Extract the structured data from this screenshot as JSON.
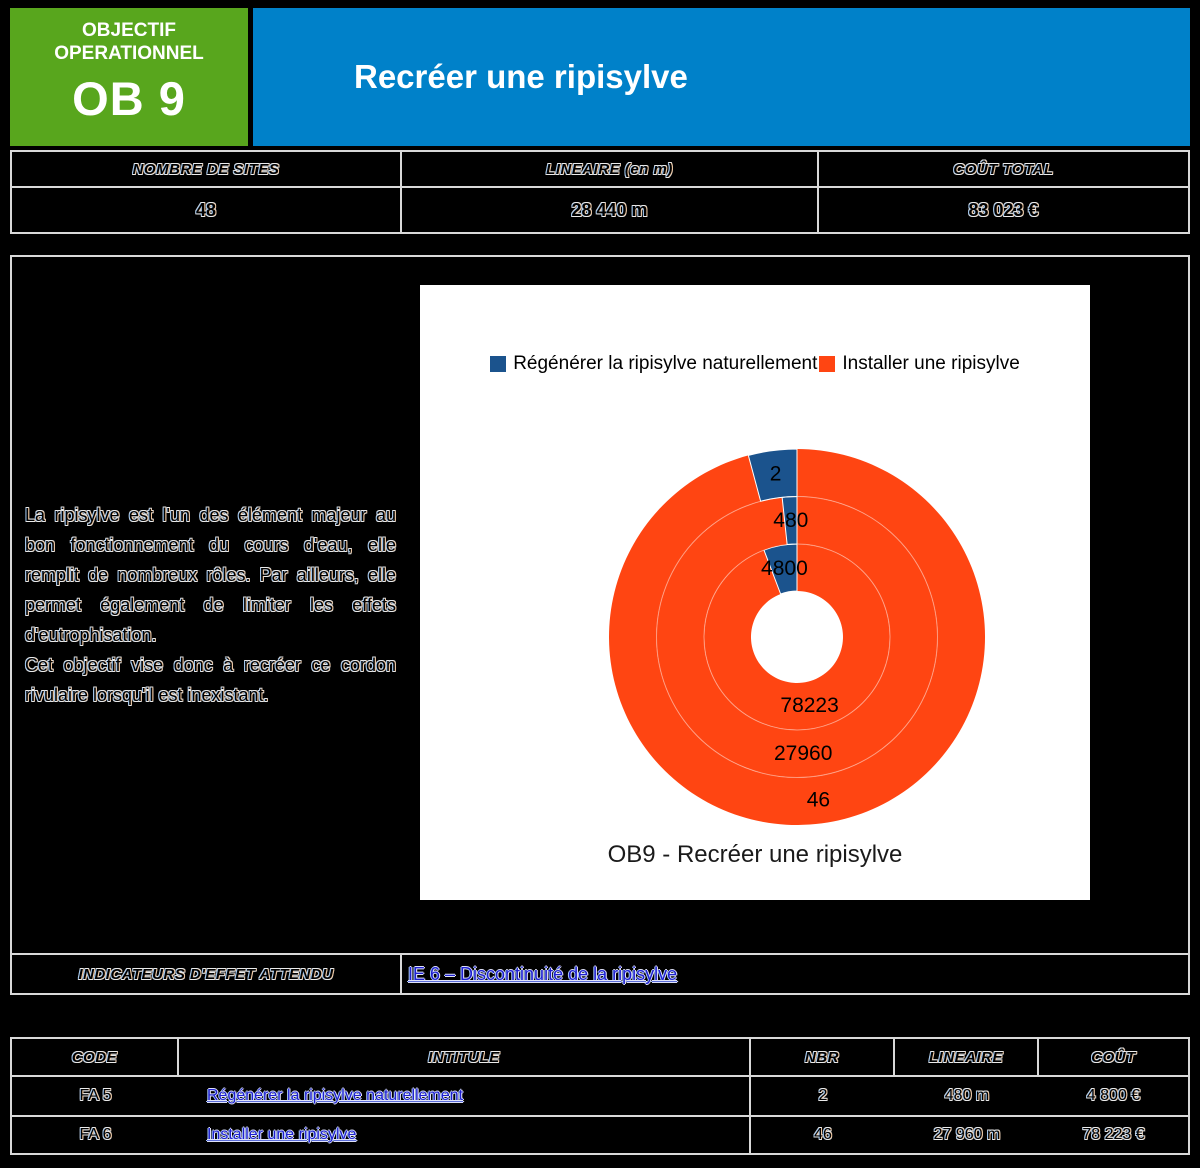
{
  "header": {
    "kicker_line1": "OBJECTIF",
    "kicker_line2": "OPERATIONNEL",
    "code": "OB 9",
    "title": "Recréer une ripisylve",
    "colors": {
      "badge_green": "#58a61d",
      "banner_blue": "#0081c9",
      "link_blue": "#1f1fd0"
    }
  },
  "stats": {
    "columns": [
      {
        "label": "NOMBRE DE SITES",
        "value": "48"
      },
      {
        "label": "LINEAIRE (en m)",
        "value": "28 440 m"
      },
      {
        "label": "COÛT TOTAL",
        "value": "83 023 €"
      }
    ]
  },
  "description": {
    "paragraph1": "La ripisylve est l'un des élément majeur au bon fonctionnement du cours d'eau, elle remplit de nombreux rôles. Par ailleurs, elle permet également de limiter les effets d'eutrophisation.",
    "paragraph2": "Cet objectif vise donc à recréer ce cordon rivulaire lorsqu'il est inexistant."
  },
  "chart_data": {
    "type": "pie",
    "subtype": "multi-ring-donut",
    "title": "OB9 - Recréer une ripisylve",
    "legend_position": "top",
    "rotation_hint": "blue slice ends at 12 o'clock, drawn counterclockwise from top",
    "legend": [
      {
        "label": "Régénérer la ripisylve naturellement",
        "color": "#1b538d"
      },
      {
        "label": "Installer une ripisylve",
        "color": "#ff4512"
      }
    ],
    "rings": [
      {
        "name": "cout_euros",
        "position": "inner",
        "values": [
          4800,
          78223
        ]
      },
      {
        "name": "lineaire_m",
        "position": "middle",
        "values": [
          480,
          27960
        ]
      },
      {
        "name": "nbr_sites",
        "position": "outer",
        "values": [
          2,
          46
        ]
      }
    ]
  },
  "indicators": {
    "label": "INDICATEURS D'EFFET ATTENDU",
    "link": "IE 6 – Discontinuité de la ripisylve"
  },
  "actions_table": {
    "headers": [
      "CODE",
      "INTITULE",
      "NBR",
      "LINEAIRE",
      "COÛT"
    ],
    "rows": [
      {
        "code": "FA 5",
        "intitule": "Régénérer la ripisylve naturellement",
        "nbr": "2",
        "lineaire": "480 m",
        "cout": "4 800 €"
      },
      {
        "code": "FA 6",
        "intitule": "Installer une ripisylve",
        "nbr": "46",
        "lineaire": "27 960 m",
        "cout": "78 223 €"
      }
    ]
  }
}
